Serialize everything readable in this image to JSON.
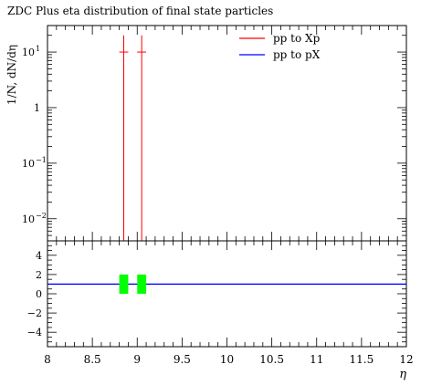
{
  "chart_data": [
    {
      "type": "line",
      "title": "ZDC Plus eta distribution of final state particles",
      "ylabel": "1/N, dN/dη",
      "xlabel": "η",
      "xlim": [
        8,
        12
      ],
      "ylim": [
        0.004,
        30
      ],
      "y_scale": "log",
      "grid": false,
      "legend_position": "top-right",
      "y_ticks": [
        {
          "value": 0.01,
          "base": "10",
          "exp": "−2"
        },
        {
          "value": 0.1,
          "base": "10",
          "exp": "−1"
        },
        {
          "value": 1,
          "base": "1",
          "exp": ""
        },
        {
          "value": 10,
          "base": "10",
          "exp": "1"
        }
      ],
      "series": [
        {
          "name": "pp to Xp",
          "color": "#ff0000",
          "points": [
            {
              "x": 8.85,
              "y": 10,
              "y_low": 0.004,
              "y_high": 20,
              "x_half_width": 0.05
            },
            {
              "x": 9.05,
              "y": 10,
              "y_low": 0.004,
              "y_high": 20,
              "x_half_width": 0.05
            }
          ]
        },
        {
          "name": "pp to pX",
          "color": "#0000ff",
          "points": []
        }
      ]
    },
    {
      "type": "line",
      "ylabel": "",
      "xlim": [
        8,
        12
      ],
      "ylim": [
        -5.5,
        5.5
      ],
      "x_ticks": [
        "8",
        "8.5",
        "9",
        "9.5",
        "10",
        "10.5",
        "11",
        "11.5",
        "12"
      ],
      "y_ticks": [
        "4",
        "2",
        "0",
        "−2",
        "−4"
      ],
      "reference_line": {
        "y": 1,
        "color": "#0000ff"
      },
      "ratio_bands": {
        "color": "#00ff00",
        "boxes": [
          {
            "x_low": 8.8,
            "x_high": 8.9,
            "y_low": 0,
            "y_high": 2
          },
          {
            "x_low": 9.0,
            "x_high": 9.1,
            "y_low": 0,
            "y_high": 2
          }
        ]
      }
    }
  ]
}
